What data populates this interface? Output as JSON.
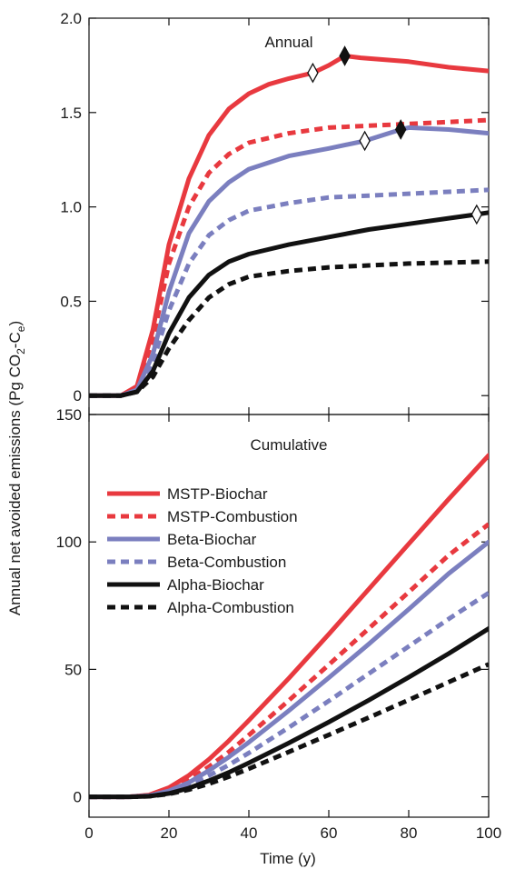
{
  "axes": {
    "ylabel_main": "Annual net avoided emissions (Pg CO",
    "ylabel_sub1": "2",
    "ylabel_mid": "-C",
    "ylabel_sub2": "e",
    "ylabel_end": ")",
    "xlabel": "Time (y)"
  },
  "colors": {
    "mstp": "#e8393f",
    "beta": "#7b7fbf",
    "alpha": "#111111"
  },
  "chart_data": [
    {
      "type": "line",
      "title": "Annual",
      "xlim": [
        0,
        100
      ],
      "ylim": [
        -0.1,
        2.0
      ],
      "x_ticks": [
        0,
        20,
        40,
        60,
        80,
        100
      ],
      "y_ticks": [
        0,
        0.5,
        1.0,
        1.5,
        2.0
      ],
      "y_tick_labels": [
        "0",
        "0.5",
        "1.0",
        "1.5",
        "2.0"
      ],
      "legend": "none",
      "series": [
        {
          "name": "MSTP-Biochar",
          "color": "#e8393f",
          "dash": "solid",
          "points": [
            [
              0,
              0
            ],
            [
              8,
              0
            ],
            [
              12,
              0.05
            ],
            [
              16,
              0.35
            ],
            [
              20,
              0.8
            ],
            [
              25,
              1.15
            ],
            [
              30,
              1.38
            ],
            [
              35,
              1.52
            ],
            [
              40,
              1.6
            ],
            [
              45,
              1.65
            ],
            [
              50,
              1.68
            ],
            [
              56,
              1.71
            ],
            [
              60,
              1.75
            ],
            [
              64,
              1.8
            ],
            [
              68,
              1.79
            ],
            [
              80,
              1.77
            ],
            [
              90,
              1.74
            ],
            [
              100,
              1.72
            ]
          ],
          "markers": [
            {
              "x": 56,
              "y": 1.71,
              "style": "open"
            },
            {
              "x": 64,
              "y": 1.8,
              "style": "filled"
            }
          ]
        },
        {
          "name": "MSTP-Combustion",
          "color": "#e8393f",
          "dash": "dashed",
          "points": [
            [
              0,
              0
            ],
            [
              8,
              0
            ],
            [
              12,
              0.04
            ],
            [
              16,
              0.3
            ],
            [
              20,
              0.7
            ],
            [
              25,
              1.0
            ],
            [
              30,
              1.18
            ],
            [
              35,
              1.28
            ],
            [
              40,
              1.34
            ],
            [
              50,
              1.39
            ],
            [
              60,
              1.42
            ],
            [
              70,
              1.43
            ],
            [
              80,
              1.44
            ],
            [
              90,
              1.45
            ],
            [
              100,
              1.46
            ]
          ],
          "markers": []
        },
        {
          "name": "Beta-Biochar",
          "color": "#7b7fbf",
          "dash": "solid",
          "points": [
            [
              0,
              0
            ],
            [
              8,
              0
            ],
            [
              12,
              0.03
            ],
            [
              16,
              0.22
            ],
            [
              20,
              0.55
            ],
            [
              25,
              0.86
            ],
            [
              30,
              1.03
            ],
            [
              35,
              1.13
            ],
            [
              40,
              1.2
            ],
            [
              50,
              1.27
            ],
            [
              60,
              1.31
            ],
            [
              69,
              1.35
            ],
            [
              75,
              1.39
            ],
            [
              78,
              1.41
            ],
            [
              80,
              1.42
            ],
            [
              90,
              1.41
            ],
            [
              100,
              1.39
            ]
          ],
          "markers": [
            {
              "x": 69,
              "y": 1.35,
              "style": "open"
            },
            {
              "x": 78,
              "y": 1.41,
              "style": "filled"
            }
          ]
        },
        {
          "name": "Beta-Combustion",
          "color": "#7b7fbf",
          "dash": "dashed",
          "points": [
            [
              0,
              0
            ],
            [
              8,
              0
            ],
            [
              12,
              0.03
            ],
            [
              16,
              0.18
            ],
            [
              20,
              0.45
            ],
            [
              25,
              0.7
            ],
            [
              30,
              0.85
            ],
            [
              35,
              0.93
            ],
            [
              40,
              0.98
            ],
            [
              50,
              1.02
            ],
            [
              60,
              1.05
            ],
            [
              70,
              1.06
            ],
            [
              80,
              1.07
            ],
            [
              90,
              1.08
            ],
            [
              100,
              1.09
            ]
          ],
          "markers": []
        },
        {
          "name": "Alpha-Biochar",
          "color": "#111111",
          "dash": "solid",
          "points": [
            [
              0,
              0
            ],
            [
              8,
              0
            ],
            [
              12,
              0.02
            ],
            [
              16,
              0.13
            ],
            [
              20,
              0.33
            ],
            [
              25,
              0.52
            ],
            [
              30,
              0.64
            ],
            [
              35,
              0.71
            ],
            [
              40,
              0.75
            ],
            [
              50,
              0.8
            ],
            [
              60,
              0.84
            ],
            [
              70,
              0.88
            ],
            [
              80,
              0.91
            ],
            [
              90,
              0.94
            ],
            [
              97,
              0.96
            ],
            [
              100,
              0.97
            ]
          ],
          "markers": [
            {
              "x": 97,
              "y": 0.96,
              "style": "open"
            }
          ]
        },
        {
          "name": "Alpha-Combustion",
          "color": "#111111",
          "dash": "dashed",
          "points": [
            [
              0,
              0
            ],
            [
              8,
              0
            ],
            [
              12,
              0.02
            ],
            [
              16,
              0.1
            ],
            [
              20,
              0.25
            ],
            [
              25,
              0.4
            ],
            [
              30,
              0.52
            ],
            [
              35,
              0.59
            ],
            [
              40,
              0.63
            ],
            [
              50,
              0.66
            ],
            [
              60,
              0.68
            ],
            [
              70,
              0.69
            ],
            [
              80,
              0.7
            ],
            [
              90,
              0.705
            ],
            [
              100,
              0.71
            ]
          ],
          "markers": []
        }
      ]
    },
    {
      "type": "line",
      "title": "Cumulative",
      "xlim": [
        0,
        100
      ],
      "ylim": [
        -8,
        150
      ],
      "x_ticks": [
        0,
        20,
        40,
        60,
        80,
        100
      ],
      "x_tick_labels": [
        "0",
        "20",
        "40",
        "60",
        "80",
        "100"
      ],
      "y_ticks": [
        0,
        50,
        100,
        150
      ],
      "y_tick_labels": [
        "0",
        "50",
        "100",
        "150"
      ],
      "legend": "upper-left",
      "series": [
        {
          "name": "MSTP-Biochar",
          "color": "#e8393f",
          "dash": "solid",
          "points": [
            [
              0,
              0
            ],
            [
              10,
              0
            ],
            [
              15,
              0.7
            ],
            [
              20,
              3.6
            ],
            [
              25,
              8.4
            ],
            [
              30,
              14.7
            ],
            [
              35,
              22
            ],
            [
              40,
              30
            ],
            [
              50,
              46.5
            ],
            [
              60,
              63.8
            ],
            [
              70,
              81.5
            ],
            [
              80,
              99.2
            ],
            [
              90,
              116.8
            ],
            [
              100,
              134
            ]
          ]
        },
        {
          "name": "MSTP-Combustion",
          "color": "#e8393f",
          "dash": "dashed",
          "points": [
            [
              0,
              0
            ],
            [
              10,
              0
            ],
            [
              15,
              0.6
            ],
            [
              20,
              2.9
            ],
            [
              25,
              6.7
            ],
            [
              30,
              11.8
            ],
            [
              35,
              17.6
            ],
            [
              40,
              24.2
            ],
            [
              50,
              37.8
            ],
            [
              60,
              51.8
            ],
            [
              70,
              66
            ],
            [
              80,
              80.3
            ],
            [
              90,
              94.8
            ],
            [
              100,
              107
            ]
          ]
        },
        {
          "name": "Beta-Biochar",
          "color": "#7b7fbf",
          "dash": "solid",
          "points": [
            [
              0,
              0
            ],
            [
              10,
              0
            ],
            [
              15,
              0.4
            ],
            [
              20,
              2.3
            ],
            [
              25,
              5.6
            ],
            [
              30,
              10.3
            ],
            [
              35,
              15.6
            ],
            [
              40,
              21.4
            ],
            [
              50,
              33.8
            ],
            [
              60,
              46.7
            ],
            [
              70,
              59.9
            ],
            [
              80,
              73.6
            ],
            [
              90,
              87.6
            ],
            [
              100,
              100
            ]
          ]
        },
        {
          "name": "Beta-Combustion",
          "color": "#7b7fbf",
          "dash": "dashed",
          "points": [
            [
              0,
              0
            ],
            [
              10,
              0
            ],
            [
              15,
              0.3
            ],
            [
              20,
              1.9
            ],
            [
              25,
              4.6
            ],
            [
              30,
              8.3
            ],
            [
              35,
              12.5
            ],
            [
              40,
              17.2
            ],
            [
              50,
              27.2
            ],
            [
              60,
              37.6
            ],
            [
              70,
              48.3
            ],
            [
              80,
              59
            ],
            [
              90,
              69.8
            ],
            [
              100,
              80
            ]
          ]
        },
        {
          "name": "Alpha-Biochar",
          "color": "#111111",
          "dash": "solid",
          "points": [
            [
              0,
              0
            ],
            [
              10,
              0
            ],
            [
              15,
              0.2
            ],
            [
              20,
              1.3
            ],
            [
              25,
              3.4
            ],
            [
              30,
              6.3
            ],
            [
              35,
              9.6
            ],
            [
              40,
              13.3
            ],
            [
              50,
              21.1
            ],
            [
              60,
              29.3
            ],
            [
              70,
              37.9
            ],
            [
              80,
              46.9
            ],
            [
              90,
              56.2
            ],
            [
              100,
              66
            ]
          ]
        },
        {
          "name": "Alpha-Combustion",
          "color": "#111111",
          "dash": "dashed",
          "points": [
            [
              0,
              0
            ],
            [
              10,
              0
            ],
            [
              15,
              0.2
            ],
            [
              20,
              1.1
            ],
            [
              25,
              2.8
            ],
            [
              30,
              5.1
            ],
            [
              35,
              7.9
            ],
            [
              40,
              11
            ],
            [
              50,
              17.6
            ],
            [
              60,
              24.3
            ],
            [
              70,
              31.1
            ],
            [
              80,
              38
            ],
            [
              90,
              45
            ],
            [
              100,
              52
            ]
          ]
        }
      ]
    }
  ]
}
